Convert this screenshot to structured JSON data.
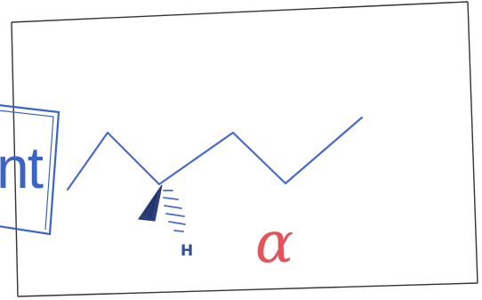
{
  "stamp": {
    "visible_text": "nt",
    "color": "#3b64c8"
  },
  "structure": {
    "type": "skeletal-formula",
    "wedge_label": "H",
    "line_color": "#4a6ad0",
    "wedge_color": "#2b3f7a"
  },
  "annotation": {
    "symbol": "α",
    "color": "#e4525a"
  },
  "frame": {
    "border_color": "#333333"
  }
}
